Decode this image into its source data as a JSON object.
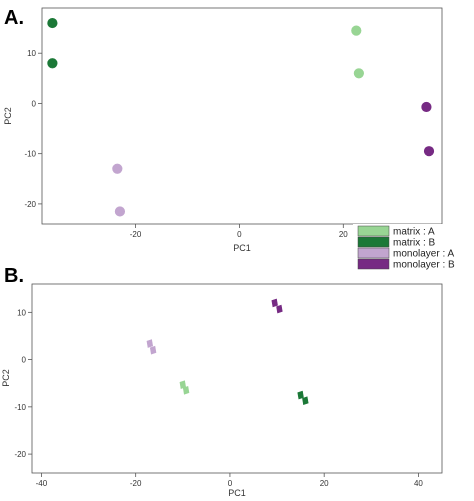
{
  "chart_data": [
    {
      "panel": "A.",
      "type": "scatter",
      "title": "",
      "xlabel": "PC1",
      "ylabel": "PC2",
      "xlim": [
        -38,
        39
      ],
      "ylim": [
        -24,
        19
      ],
      "xticks": [
        -20,
        0,
        20
      ],
      "yticks": [
        -20,
        -10,
        0,
        10
      ],
      "grid": false,
      "series": [
        {
          "name": "matrix : A",
          "color": "#98d594",
          "points": [
            {
              "x": 22.5,
              "y": 14.5
            },
            {
              "x": 23,
              "y": 6
            }
          ]
        },
        {
          "name": "matrix : B",
          "color": "#1b7837",
          "points": [
            {
              "x": -36,
              "y": 16
            },
            {
              "x": -36,
              "y": 8
            }
          ]
        },
        {
          "name": "monolayer : A",
          "color": "#c2a5cf",
          "points": [
            {
              "x": -23.5,
              "y": -13
            },
            {
              "x": -23,
              "y": -21.5
            }
          ]
        },
        {
          "name": "monolayer : B",
          "color": "#762a83",
          "points": [
            {
              "x": 36,
              "y": -0.7
            },
            {
              "x": 36.5,
              "y": -9.5
            }
          ]
        }
      ]
    },
    {
      "panel": "B.",
      "type": "scatter",
      "title": "",
      "xlabel": "PC1",
      "ylabel": "PC2",
      "xlim": [
        -42,
        45
      ],
      "ylim": [
        -24,
        16
      ],
      "xticks": [
        -40,
        -20,
        0,
        20,
        40
      ],
      "yticks": [
        -20,
        -10,
        0,
        10
      ],
      "grid": false,
      "series": [
        {
          "name": "matrix : A",
          "color": "#98d594",
          "points": [
            {
              "x": -10,
              "y": -5.3
            },
            {
              "x": -9.3,
              "y": -6.5
            }
          ]
        },
        {
          "name": "matrix : B",
          "color": "#1b7837",
          "points": [
            {
              "x": 15,
              "y": -7.5
            },
            {
              "x": 16,
              "y": -8.7
            }
          ]
        },
        {
          "name": "monolayer : A",
          "color": "#c2a5cf",
          "points": [
            {
              "x": -17,
              "y": 3.4
            },
            {
              "x": -16.3,
              "y": 2
            }
          ]
        },
        {
          "name": "monolayer : B",
          "color": "#762a83",
          "points": [
            {
              "x": 9.5,
              "y": 12
            },
            {
              "x": 10.5,
              "y": 10.7
            }
          ]
        }
      ]
    }
  ],
  "legend": {
    "placement": "between panels, right",
    "items": [
      {
        "label": "matrix : A",
        "color": "#98d594"
      },
      {
        "label": "matrix : B",
        "color": "#1b7837"
      },
      {
        "label": "monolayer : A",
        "color": "#c2a5cf"
      },
      {
        "label": "monolayer : B",
        "color": "#762a83"
      }
    ]
  }
}
